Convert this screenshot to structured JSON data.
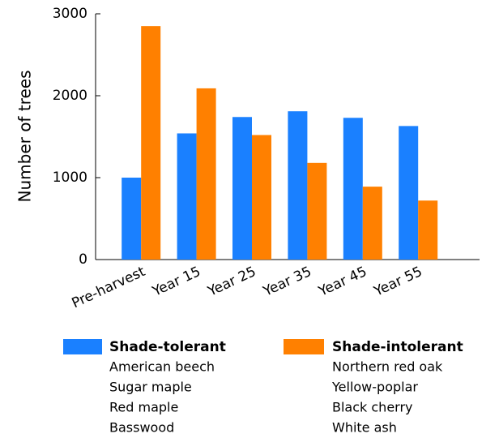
{
  "chart_data": {
    "type": "bar",
    "y_label": "Number of trees",
    "categories": [
      "Pre-harvest",
      "Year 15",
      "Year 25",
      "Year 35",
      "Year 45",
      "Year 55"
    ],
    "series": [
      {
        "name": "Shade-tolerant",
        "color": "#1a80ff",
        "values": [
          1000,
          1540,
          1740,
          1810,
          1730,
          1630
        ],
        "members": [
          "American beech",
          "Sugar maple",
          "Red maple",
          "Basswood"
        ]
      },
      {
        "name": "Shade-intolerant",
        "color": "#ff8000",
        "values": [
          2850,
          2090,
          1520,
          1180,
          890,
          720
        ],
        "members": [
          "Northern red oak",
          "Yellow-poplar",
          "Black cherry",
          "White ash"
        ]
      }
    ],
    "ylim": [
      0,
      3000
    ],
    "yticks": [
      0,
      1000,
      2000,
      3000
    ],
    "grid": false
  }
}
